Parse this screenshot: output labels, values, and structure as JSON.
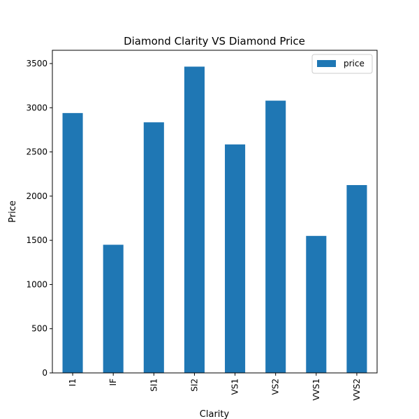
{
  "chart_data": {
    "type": "bar",
    "title": "Diamond Clarity VS Diamond Price",
    "xlabel": "Clarity",
    "ylabel": "Price",
    "categories": [
      "I1",
      "IF",
      "SI1",
      "SI2",
      "VS1",
      "VS2",
      "VVS1",
      "VVS2"
    ],
    "series": [
      {
        "name": "price",
        "color": "#1f77b4",
        "values": [
          2940,
          1450,
          2835,
          3465,
          2585,
          3080,
          1550,
          2125
        ]
      }
    ],
    "ylim": [
      0,
      3650
    ],
    "yticks": [
      0,
      500,
      1000,
      1500,
      2000,
      2500,
      3000,
      3500
    ],
    "grid": false,
    "legend": "top-right"
  }
}
